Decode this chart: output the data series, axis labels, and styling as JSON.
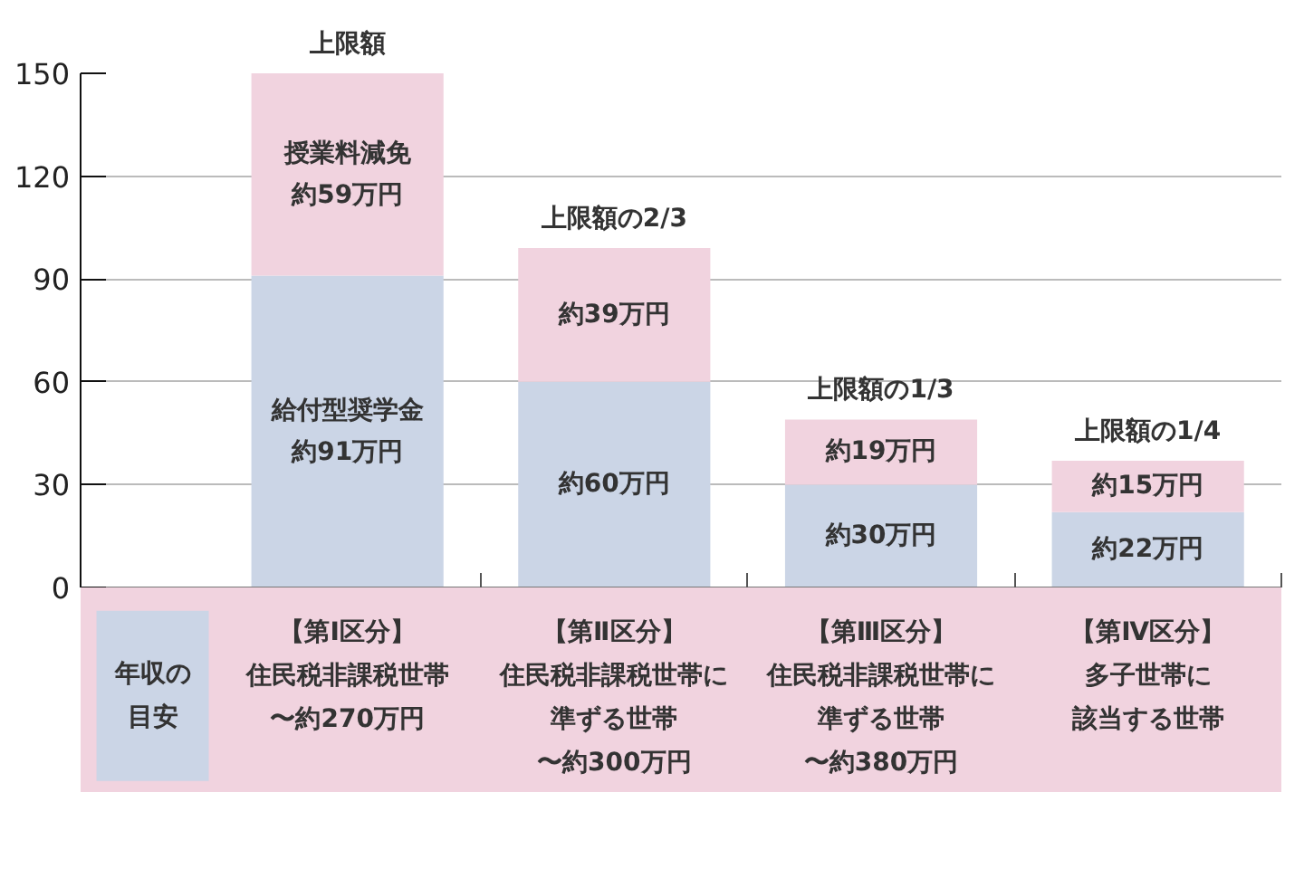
{
  "chart_data": {
    "type": "bar",
    "stacked": true,
    "categories": [
      "【第Ⅰ区分】住民税非課税世帯〜約270万円",
      "【第Ⅱ区分】住民税非課税世帯に準ずる世帯〜約300万円",
      "【第Ⅲ区分】住民税非課税世帯に準ずる世帯〜約380万円",
      "【第Ⅳ区分】多子世帯に該当する世帯"
    ],
    "xlabel": "年収の目安",
    "series": [
      {
        "color": "#cbd5e6",
        "values": [
          91,
          60,
          30,
          22
        ],
        "value_labels": [
          "給付型奨学金約91万円",
          "約60万円",
          "約30万円",
          "約22万円"
        ]
      },
      {
        "color": "#f1d3df",
        "values": [
          59,
          39,
          19,
          15
        ],
        "value_labels": [
          "授業料減免約59万円",
          "約39万円",
          "約19万円",
          "約15万円"
        ]
      }
    ],
    "totals": [
      "上限額",
      "上限額の2/3",
      "上限額の1/3",
      "上限額の1/4"
    ],
    "ylim": [
      0,
      150
    ],
    "yticks": [
      0,
      30,
      60,
      90,
      120,
      150
    ],
    "grid": "y"
  }
}
